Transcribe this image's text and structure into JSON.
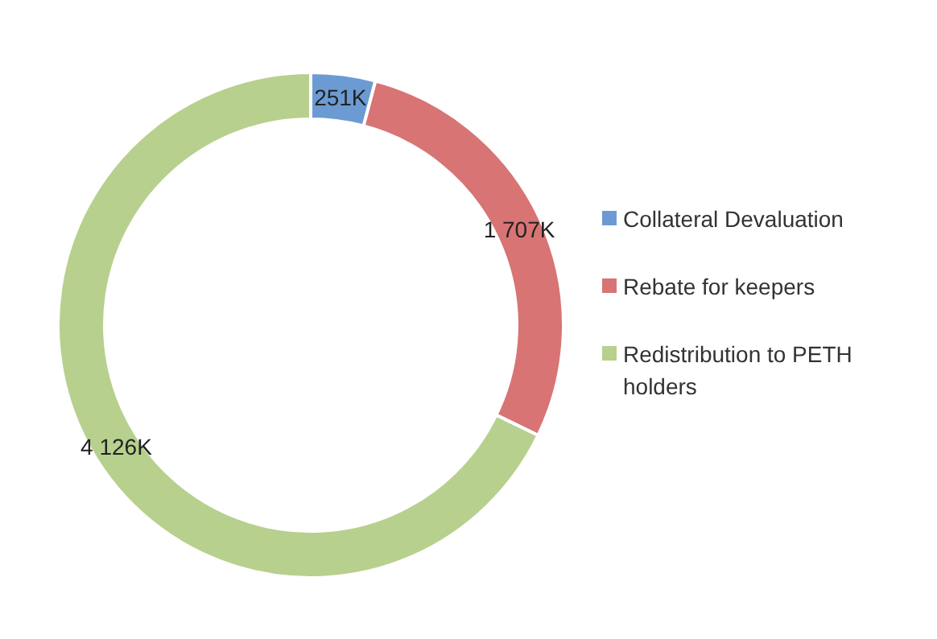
{
  "chart_data": {
    "type": "donut",
    "categories": [
      "Collateral Devaluation",
      "Rebate for keepers",
      "Redistribution to PETH holders"
    ],
    "values": [
      251,
      1707,
      4126
    ],
    "value_labels": [
      "251K",
      "1 707K",
      "4 126K"
    ],
    "colors": [
      "#6b9bd2",
      "#d87474",
      "#b7d08e"
    ],
    "legend": "right"
  }
}
